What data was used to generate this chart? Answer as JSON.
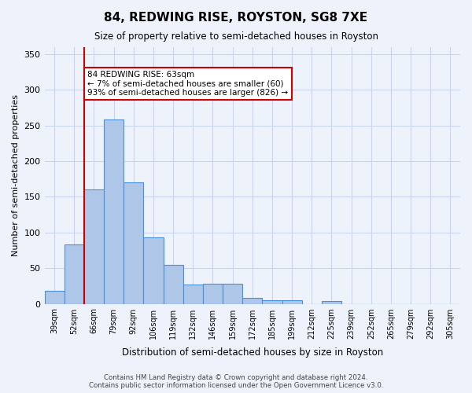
{
  "title": "84, REDWING RISE, ROYSTON, SG8 7XE",
  "subtitle": "Size of property relative to semi-detached houses in Royston",
  "xlabel": "Distribution of semi-detached houses by size in Royston",
  "ylabel": "Number of semi-detached properties",
  "footer_line1": "Contains HM Land Registry data © Crown copyright and database right 2024.",
  "footer_line2": "Contains public sector information licensed under the Open Government Licence v3.0.",
  "bin_labels": [
    "39sqm",
    "52sqm",
    "66sqm",
    "79sqm",
    "92sqm",
    "106sqm",
    "119sqm",
    "132sqm",
    "146sqm",
    "159sqm",
    "172sqm",
    "185sqm",
    "199sqm",
    "212sqm",
    "225sqm",
    "239sqm",
    "252sqm",
    "265sqm",
    "279sqm",
    "292sqm",
    "305sqm"
  ],
  "bar_values": [
    18,
    83,
    160,
    259,
    170,
    93,
    55,
    27,
    28,
    28,
    8,
    5,
    5,
    0,
    4,
    0,
    0,
    0,
    0,
    0,
    0
  ],
  "bar_color": "#aec6e8",
  "bar_edge_color": "#4a90d9",
  "vline_x_index": 2,
  "vline_color": "#cc0000",
  "annotation_text": "84 REDWING RISE: 63sqm\n← 7% of semi-detached houses are smaller (60)\n93% of semi-detached houses are larger (826) →",
  "annotation_box_color": "white",
  "annotation_box_edge_color": "#cc0000",
  "ylim": [
    0,
    360
  ],
  "yticks": [
    0,
    50,
    100,
    150,
    200,
    250,
    300,
    350
  ],
  "bg_color": "#eef2fb",
  "plot_bg_color": "#eef2fb",
  "grid_color": "#c8d4f0"
}
